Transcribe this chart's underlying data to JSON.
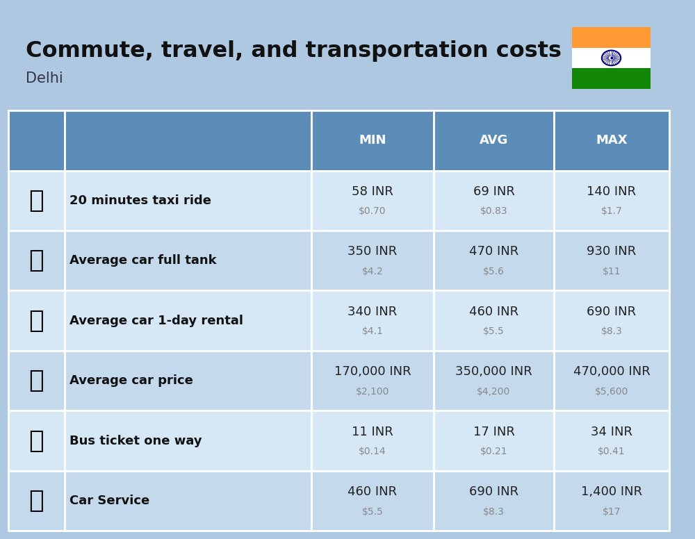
{
  "title": "Commute, travel, and transportation costs",
  "subtitle": "Delhi",
  "bg_color": "#adc8e0",
  "header_bg": "#5b8db8",
  "header_fg": "#ffffff",
  "row_colors": [
    "#d6e8f5",
    "#c4d9ec"
  ],
  "border_color": "#ffffff",
  "label_color": "#111111",
  "value_color": "#222222",
  "usd_color": "#888888",
  "col_headers": [
    "MIN",
    "AVG",
    "MAX"
  ],
  "rows": [
    {
      "label": "20 minutes taxi ride",
      "min_inr": "58 INR",
      "min_usd": "$0.70",
      "avg_inr": "69 INR",
      "avg_usd": "$0.83",
      "max_inr": "140 INR",
      "max_usd": "$1.7"
    },
    {
      "label": "Average car full tank",
      "min_inr": "350 INR",
      "min_usd": "$4.2",
      "avg_inr": "470 INR",
      "avg_usd": "$5.6",
      "max_inr": "930 INR",
      "max_usd": "$11"
    },
    {
      "label": "Average car 1-day rental",
      "min_inr": "340 INR",
      "min_usd": "$4.1",
      "avg_inr": "460 INR",
      "avg_usd": "$5.5",
      "max_inr": "690 INR",
      "max_usd": "$8.3"
    },
    {
      "label": "Average car price",
      "min_inr": "170,000 INR",
      "min_usd": "$2,100",
      "avg_inr": "350,000 INR",
      "avg_usd": "$4,200",
      "max_inr": "470,000 INR",
      "max_usd": "$5,600"
    },
    {
      "label": "Bus ticket one way",
      "min_inr": "11 INR",
      "min_usd": "$0.14",
      "avg_inr": "17 INR",
      "avg_usd": "$0.21",
      "max_inr": "34 INR",
      "max_usd": "$0.41"
    },
    {
      "label": "Car Service",
      "min_inr": "460 INR",
      "min_usd": "$5.5",
      "avg_inr": "690 INR",
      "avg_usd": "$8.3",
      "max_inr": "1,400 INR",
      "max_usd": "$17"
    }
  ],
  "title_fontsize": 23,
  "subtitle_fontsize": 15,
  "header_fontsize": 13,
  "label_fontsize": 13,
  "value_fontsize": 13,
  "usd_fontsize": 10,
  "flag_orange": "#FF9933",
  "flag_white": "#FFFFFF",
  "flag_green": "#138808",
  "flag_chakra": "#000080"
}
